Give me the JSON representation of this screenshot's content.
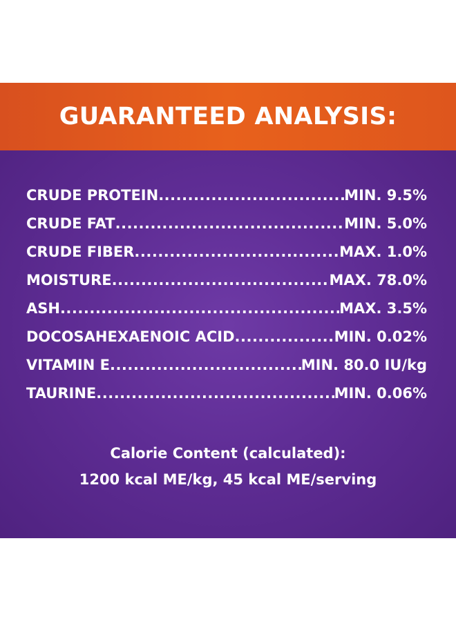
{
  "header": {
    "title": "GUARANTEED ANALYSIS:"
  },
  "analysis": [
    {
      "label": "CRUDE PROTEIN",
      "value": "MIN. 9.5%"
    },
    {
      "label": "CRUDE FAT",
      "value": "MIN. 5.0%"
    },
    {
      "label": "CRUDE FIBER",
      "value": "MAX. 1.0%"
    },
    {
      "label": "MOISTURE",
      "value": "MAX. 78.0%"
    },
    {
      "label": "ASH",
      "value": "MAX. 3.5%"
    },
    {
      "label": "DOCOSAHEXAENOIC ACID",
      "value": "MIN. 0.02%"
    },
    {
      "label": "VITAMIN E",
      "value": "MIN. 80.0 IU/kg"
    },
    {
      "label": "TAURINE",
      "value": "MIN. 0.06%"
    }
  ],
  "calorie": {
    "line1": "Calorie Content (calculated):",
    "line2": "1200 kcal ME/kg, 45 kcal ME/serving"
  },
  "colors": {
    "header_orange": "#e8611c",
    "panel_purple": "#5f2d95",
    "text": "#ffffff"
  }
}
